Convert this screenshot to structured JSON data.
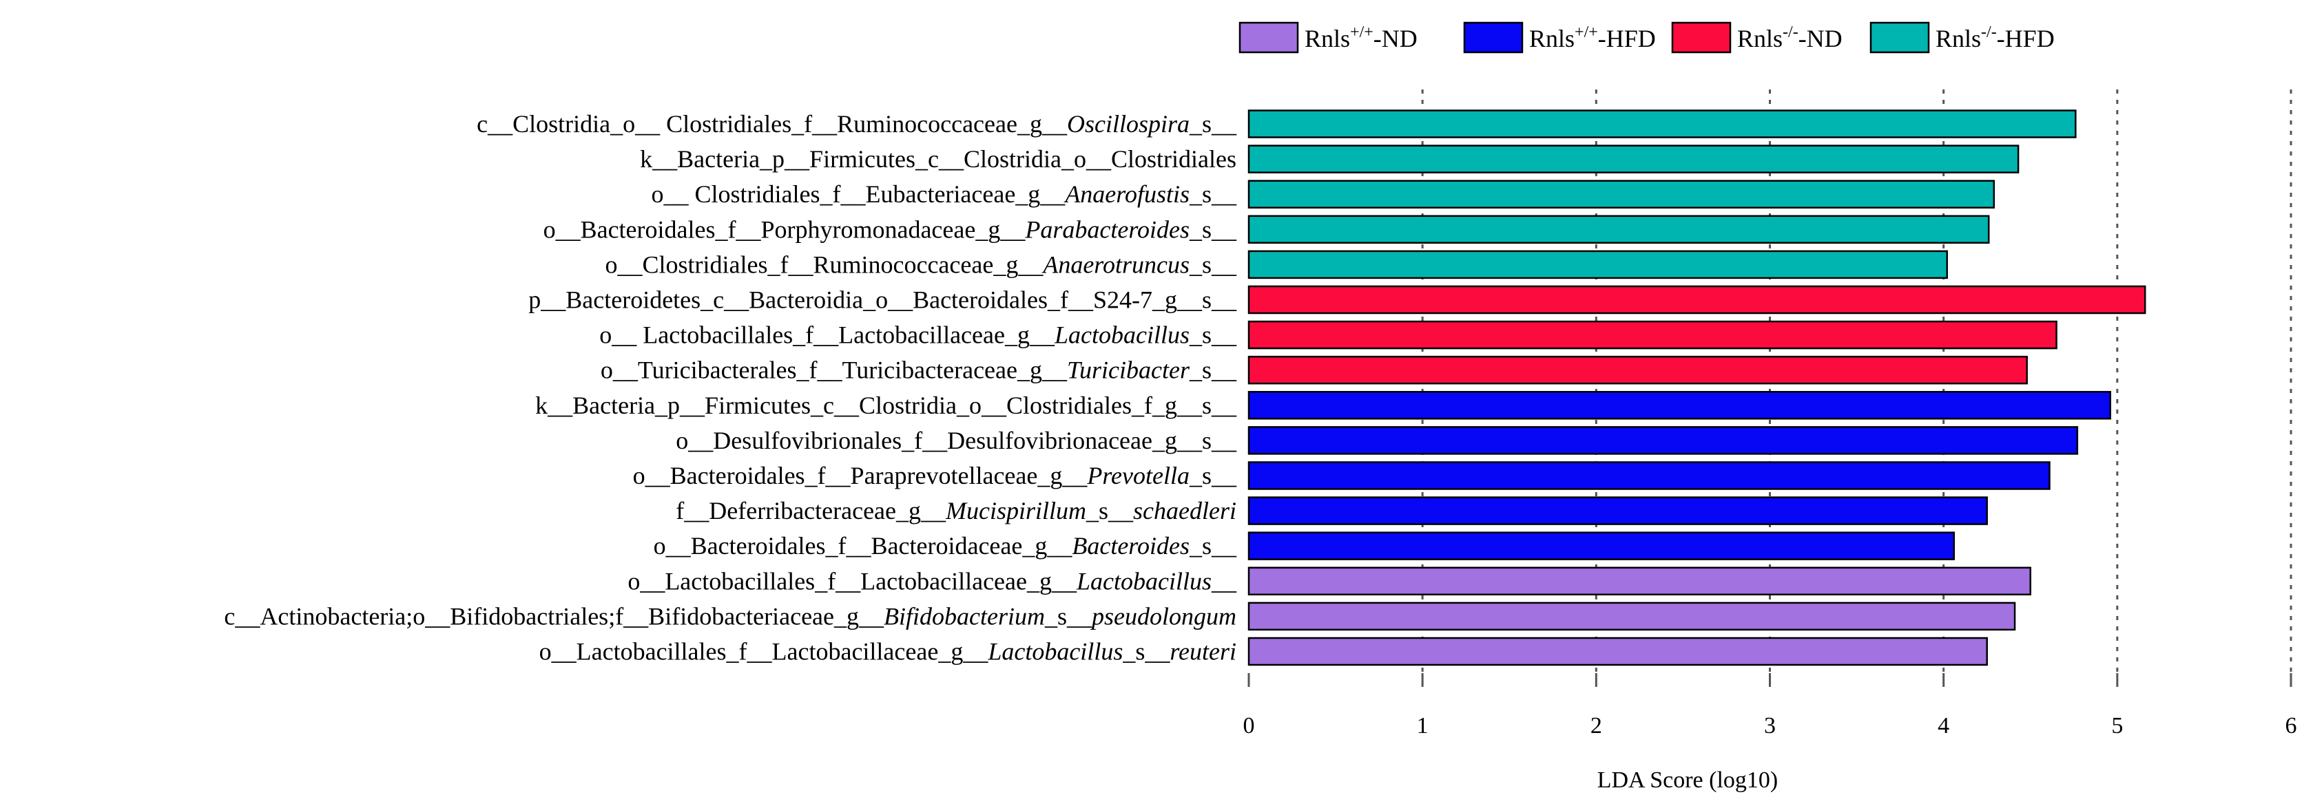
{
  "chart_data": {
    "type": "bar",
    "orientation": "horizontal",
    "xlabel": "LDA Score (log10)",
    "xlim": [
      0,
      6
    ],
    "ticks": [
      "0",
      "1",
      "2",
      "3",
      "4",
      "5",
      "6"
    ],
    "legend_position": "top",
    "groups": [
      {
        "id": "wt-nd",
        "label": "Rnls",
        "sup": "+/+",
        "suffix": "-ND",
        "color": "#a172e0"
      },
      {
        "id": "wt-hfd",
        "label": "Rnls",
        "sup": "+/+",
        "suffix": "-HFD",
        "color": "#0707f5"
      },
      {
        "id": "ko-nd",
        "label": "Rnls",
        "sup": "-/-",
        "suffix": "-ND",
        "color": "#fc0c3e"
      },
      {
        "id": "ko-hfd",
        "label": "Rnls",
        "sup": "-/-",
        "suffix": "-HFD",
        "color": "#00b5b0"
      }
    ],
    "categories": [
      "c__Clostridia_o__ Clostridiales_f__Ruminococcaceae_g__Oscillospira_s__",
      "k__Bacteria_p__Firmicutes_c__Clostridia_o__Clostridiales",
      "o__ Clostridiales_f__Eubacteriaceae_g__Anaerofustis_s__",
      "o__Bacteroidales_f__Porphyromonadaceae_g__Parabacteroides_s__",
      "o__Clostridiales_f__Ruminococcaceae_g__Anaerotruncus_s__",
      "p__Bacteroidetes_c__Bacteroidia_o__Bacteroidales_f__S24-7_g__s__",
      "o__ Lactobacillales_f__Lactobacillaceae_g__Lactobacillus_s__",
      "o__Turicibacterales_f__Turicibacteraceae_g__Turicibacter_s__",
      "k__Bacteria_p__Firmicutes_c__Clostridia_o__Clostridiales_f_g__s__",
      "o__Desulfovibrionales_f__Desulfovibrionaceae_g__s__",
      "o__Bacteroidales_f__Paraprevotellaceae_g__Prevotella_s__",
      "f__Deferribacteraceae_g__Mucispirillum_s__schaedleri",
      "o__Bacteroidales_f__Bacteroidaceae_g__Bacteroides_s__",
      "o__Lactobacillales_f__Lactobacillaceae_g__Lactobacillus__",
      "c__Actinobacteria;o__Bifidobactriales;f__Bifidobacteriaceae_g__Bifidobacterium_s__pseudolongum",
      "o__Lactobacillales_f__Lactobacillaceae_g__Lactobacillus_s__reuteri"
    ],
    "label_parts": [
      [
        {
          "t": "c__Clostridia_o__ Clostridiales_f__Ruminococcaceae_g__",
          "i": false
        },
        {
          "t": "Oscillospira",
          "i": true
        },
        {
          "t": "_s__",
          "i": false
        }
      ],
      [
        {
          "t": "k__Bacteria_p__Firmicutes_c__Clostridia_o__Clostridiales",
          "i": false
        }
      ],
      [
        {
          "t": "o__ Clostridiales_f__Eubacteriaceae_g__",
          "i": false
        },
        {
          "t": "Anaerofustis",
          "i": true
        },
        {
          "t": "_s__",
          "i": false
        }
      ],
      [
        {
          "t": "o__Bacteroidales_f__Porphyromonadaceae_g__",
          "i": false
        },
        {
          "t": "Parabacteroides",
          "i": true
        },
        {
          "t": "_s__",
          "i": false
        }
      ],
      [
        {
          "t": "o__Clostridiales_f__Ruminococcaceae_g__",
          "i": false
        },
        {
          "t": "Anaerotruncus",
          "i": true
        },
        {
          "t": "_s__",
          "i": false
        }
      ],
      [
        {
          "t": "p__Bacteroidetes_c__Bacteroidia_o__Bacteroidales_f__S24-7_g__s__",
          "i": false
        }
      ],
      [
        {
          "t": "o__ Lactobacillales_f__Lactobacillaceae_g__",
          "i": false
        },
        {
          "t": "Lactobacillus",
          "i": true
        },
        {
          "t": "_s__",
          "i": false
        }
      ],
      [
        {
          "t": "o__Turicibacterales_f__Turicibacteraceae_g__",
          "i": false
        },
        {
          "t": "Turicibacter",
          "i": true
        },
        {
          "t": "_s__",
          "i": false
        }
      ],
      [
        {
          "t": "k__Bacteria_p__Firmicutes_c__Clostridia_o__Clostridiales_f_g__s__",
          "i": false
        }
      ],
      [
        {
          "t": "o__Desulfovibrionales_f__Desulfovibrionaceae_g__s__",
          "i": false
        }
      ],
      [
        {
          "t": "o__Bacteroidales_f__Paraprevotellaceae_g__",
          "i": false
        },
        {
          "t": "Prevotella",
          "i": true
        },
        {
          "t": "_s__",
          "i": false
        }
      ],
      [
        {
          "t": "f__Deferribacteraceae_g__",
          "i": false
        },
        {
          "t": "Mucispirillum",
          "i": true
        },
        {
          "t": "_s__",
          "i": false
        },
        {
          "t": "schaedleri",
          "i": true
        }
      ],
      [
        {
          "t": "o__Bacteroidales_f__Bacteroidaceae_g__",
          "i": false
        },
        {
          "t": "Bacteroides",
          "i": true
        },
        {
          "t": "_s__",
          "i": false
        }
      ],
      [
        {
          "t": "o__Lactobacillales_f__Lactobacillaceae_g__",
          "i": false
        },
        {
          "t": "Lactobacillus",
          "i": true
        },
        {
          "t": "__",
          "i": false
        }
      ],
      [
        {
          "t": "c__Actinobacteria;o__Bifidobactriales;f__Bifidobacteriaceae_g__",
          "i": false
        },
        {
          "t": "Bifidobacterium",
          "i": true
        },
        {
          "t": "_s__",
          "i": false
        },
        {
          "t": "pseudolongum",
          "i": true
        }
      ],
      [
        {
          "t": "o__Lactobacillales_f__Lactobacillaceae_g__",
          "i": false
        },
        {
          "t": "Lactobacillus",
          "i": true
        },
        {
          "t": "_s__",
          "i": false
        },
        {
          "t": "reuteri",
          "i": true
        }
      ]
    ],
    "values": [
      4.76,
      4.43,
      4.29,
      4.26,
      4.02,
      5.16,
      4.65,
      4.48,
      4.96,
      4.77,
      4.61,
      4.25,
      4.06,
      4.5,
      4.41,
      4.25
    ],
    "bar_groups": [
      "ko-hfd",
      "ko-hfd",
      "ko-hfd",
      "ko-hfd",
      "ko-hfd",
      "ko-nd",
      "ko-nd",
      "ko-nd",
      "wt-hfd",
      "wt-hfd",
      "wt-hfd",
      "wt-hfd",
      "wt-hfd",
      "wt-nd",
      "wt-nd",
      "wt-nd"
    ],
    "gridlines": "vertical dashed at integer ticks"
  }
}
